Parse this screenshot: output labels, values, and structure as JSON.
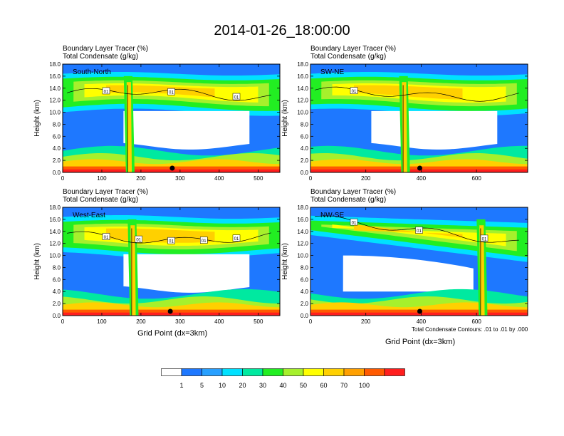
{
  "title": "2014-01-26_18:00:00",
  "colors": {
    "bg": "#ffffff",
    "levels": [
      "#ffffff",
      "#1e78ff",
      "#28a0ff",
      "#00e1ff",
      "#00e9a0",
      "#22ee22",
      "#a6f02c",
      "#ffff00",
      "#ffd000",
      "#ffa000",
      "#ff5a00",
      "#ff1e1e"
    ]
  },
  "panels": [
    {
      "title1": "Boundary Layer Tracer   (%)",
      "title2": "Total Condensate   (g/kg)",
      "label": "South-North",
      "xmax": 555,
      "xticks": [
        "0",
        "100",
        "200",
        "300",
        "400",
        "500"
      ],
      "xtick_values": [
        0,
        100,
        200,
        300,
        400,
        500
      ],
      "marker_x": 280,
      "tower_x": 170,
      "contour_labels": [
        "01",
        "01",
        "01"
      ]
    },
    {
      "title1": "Boundary Layer Tracer   (%)",
      "title2": "Total Condensate   (g/kg)",
      "label": "SW-NE",
      "xmax": 785,
      "xticks": [
        "0",
        "200",
        "400",
        "600"
      ],
      "xtick_values": [
        0,
        200,
        400,
        600
      ],
      "marker_x": 395,
      "tower_x": 340,
      "contour_labels": [
        "01"
      ]
    },
    {
      "title1": "Boundary Layer Tracer   (%)",
      "title2": "Total Condensate   (g/kg)",
      "label": "West-East",
      "xmax": 555,
      "xticks": [
        "0",
        "100",
        "200",
        "300",
        "400",
        "500"
      ],
      "xtick_values": [
        0,
        100,
        200,
        300,
        400,
        500
      ],
      "marker_x": 275,
      "tower_x": 180,
      "contour_labels": [
        "01",
        "01",
        "01",
        "01",
        "01"
      ]
    },
    {
      "title1": "Boundary Layer Tracer   (%)",
      "title2": "Total Condensate   (g/kg)",
      "label": "NW-SE",
      "xmax": 785,
      "xticks": [
        "0",
        "200",
        "400",
        "600"
      ],
      "xtick_values": [
        0,
        200,
        400,
        600
      ],
      "marker_x": 395,
      "tower_x": 620,
      "contour_labels": [
        "01",
        "01",
        "01"
      ]
    }
  ],
  "axis": {
    "ylabel": "Height (km)",
    "yticks": [
      "0.0",
      "2.0",
      "4.0",
      "6.0",
      "8.0",
      "10.0",
      "12.0",
      "14.0",
      "16.0",
      "18.0"
    ],
    "ytick_values": [
      0,
      2,
      4,
      6,
      8,
      10,
      12,
      14,
      16,
      18
    ],
    "ylim": [
      0,
      18
    ],
    "xlabel": "Grid Point (dx=3km)"
  },
  "contour_note": "Total Condensate Contours: .01 to .01 by .000",
  "colorbar": {
    "labels": [
      "1",
      "5",
      "10",
      "20",
      "30",
      "40",
      "50",
      "60",
      "70",
      "100"
    ]
  },
  "chart_data": {
    "type": "heatmap",
    "title": "2014-01-26_18:00:00",
    "xlabel": "Grid Point (dx=3km)",
    "ylabel": "Height (km)",
    "ylim": [
      0,
      18
    ],
    "levels": [
      1,
      5,
      10,
      20,
      30,
      40,
      50,
      60,
      70,
      100
    ],
    "series": [
      {
        "name": "South-North",
        "xlim": [
          0,
          555
        ]
      },
      {
        "name": "SW-NE",
        "xlim": [
          0,
          785
        ]
      },
      {
        "name": "West-East",
        "xlim": [
          0,
          555
        ]
      },
      {
        "name": "NW-SE",
        "xlim": [
          0,
          785
        ]
      }
    ]
  }
}
